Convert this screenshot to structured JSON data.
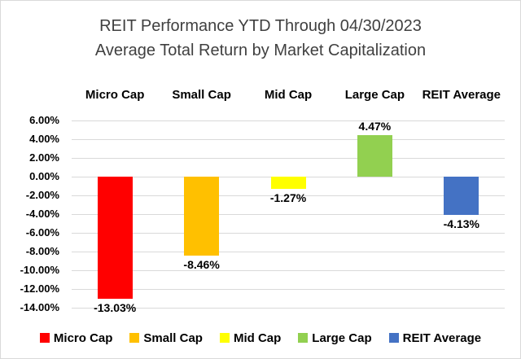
{
  "chart": {
    "title_line1": "REIT Performance YTD Through 04/30/2023",
    "title_line2": "Average Total Return by Market Capitalization"
  },
  "chart_data": {
    "type": "bar",
    "title": "REIT Performance YTD Through 04/30/2023 Average Total Return by Market Capitalization",
    "categories": [
      "Micro Cap",
      "Small Cap",
      "Mid Cap",
      "Large Cap",
      "REIT Average"
    ],
    "values": [
      -13.03,
      -8.46,
      -1.27,
      4.47,
      -4.13
    ],
    "value_labels": [
      "-13.03%",
      "-8.46%",
      "-1.27%",
      "4.47%",
      "-4.13%"
    ],
    "series_colors": [
      "#ff0000",
      "#ffc000",
      "#ffff00",
      "#92d050",
      "#4472c4"
    ],
    "xlabel": "",
    "ylabel": "",
    "ylim": [
      -14,
      6
    ],
    "ytick_step": 2,
    "ytick_labels": [
      "6.00%",
      "4.00%",
      "2.00%",
      "0.00%",
      "-2.00%",
      "-4.00%",
      "-6.00%",
      "-8.00%",
      "-10.00%",
      "-12.00%",
      "-14.00%"
    ],
    "grid": "horizontal",
    "category_label_position": "top",
    "value_label_position": "outside-end",
    "legend_position": "bottom",
    "legend": [
      {
        "label": "Micro Cap",
        "color": "#ff0000"
      },
      {
        "label": "Small Cap",
        "color": "#ffc000"
      },
      {
        "label": "Mid Cap",
        "color": "#ffff00"
      },
      {
        "label": "Large Cap",
        "color": "#92d050"
      },
      {
        "label": "REIT Average",
        "color": "#4472c4"
      }
    ]
  },
  "colors": {
    "background": "#ffffff",
    "border": "#d9d9d9",
    "gridline": "#d9d9d9",
    "title_text": "#404040",
    "axis_text": "#000000"
  }
}
